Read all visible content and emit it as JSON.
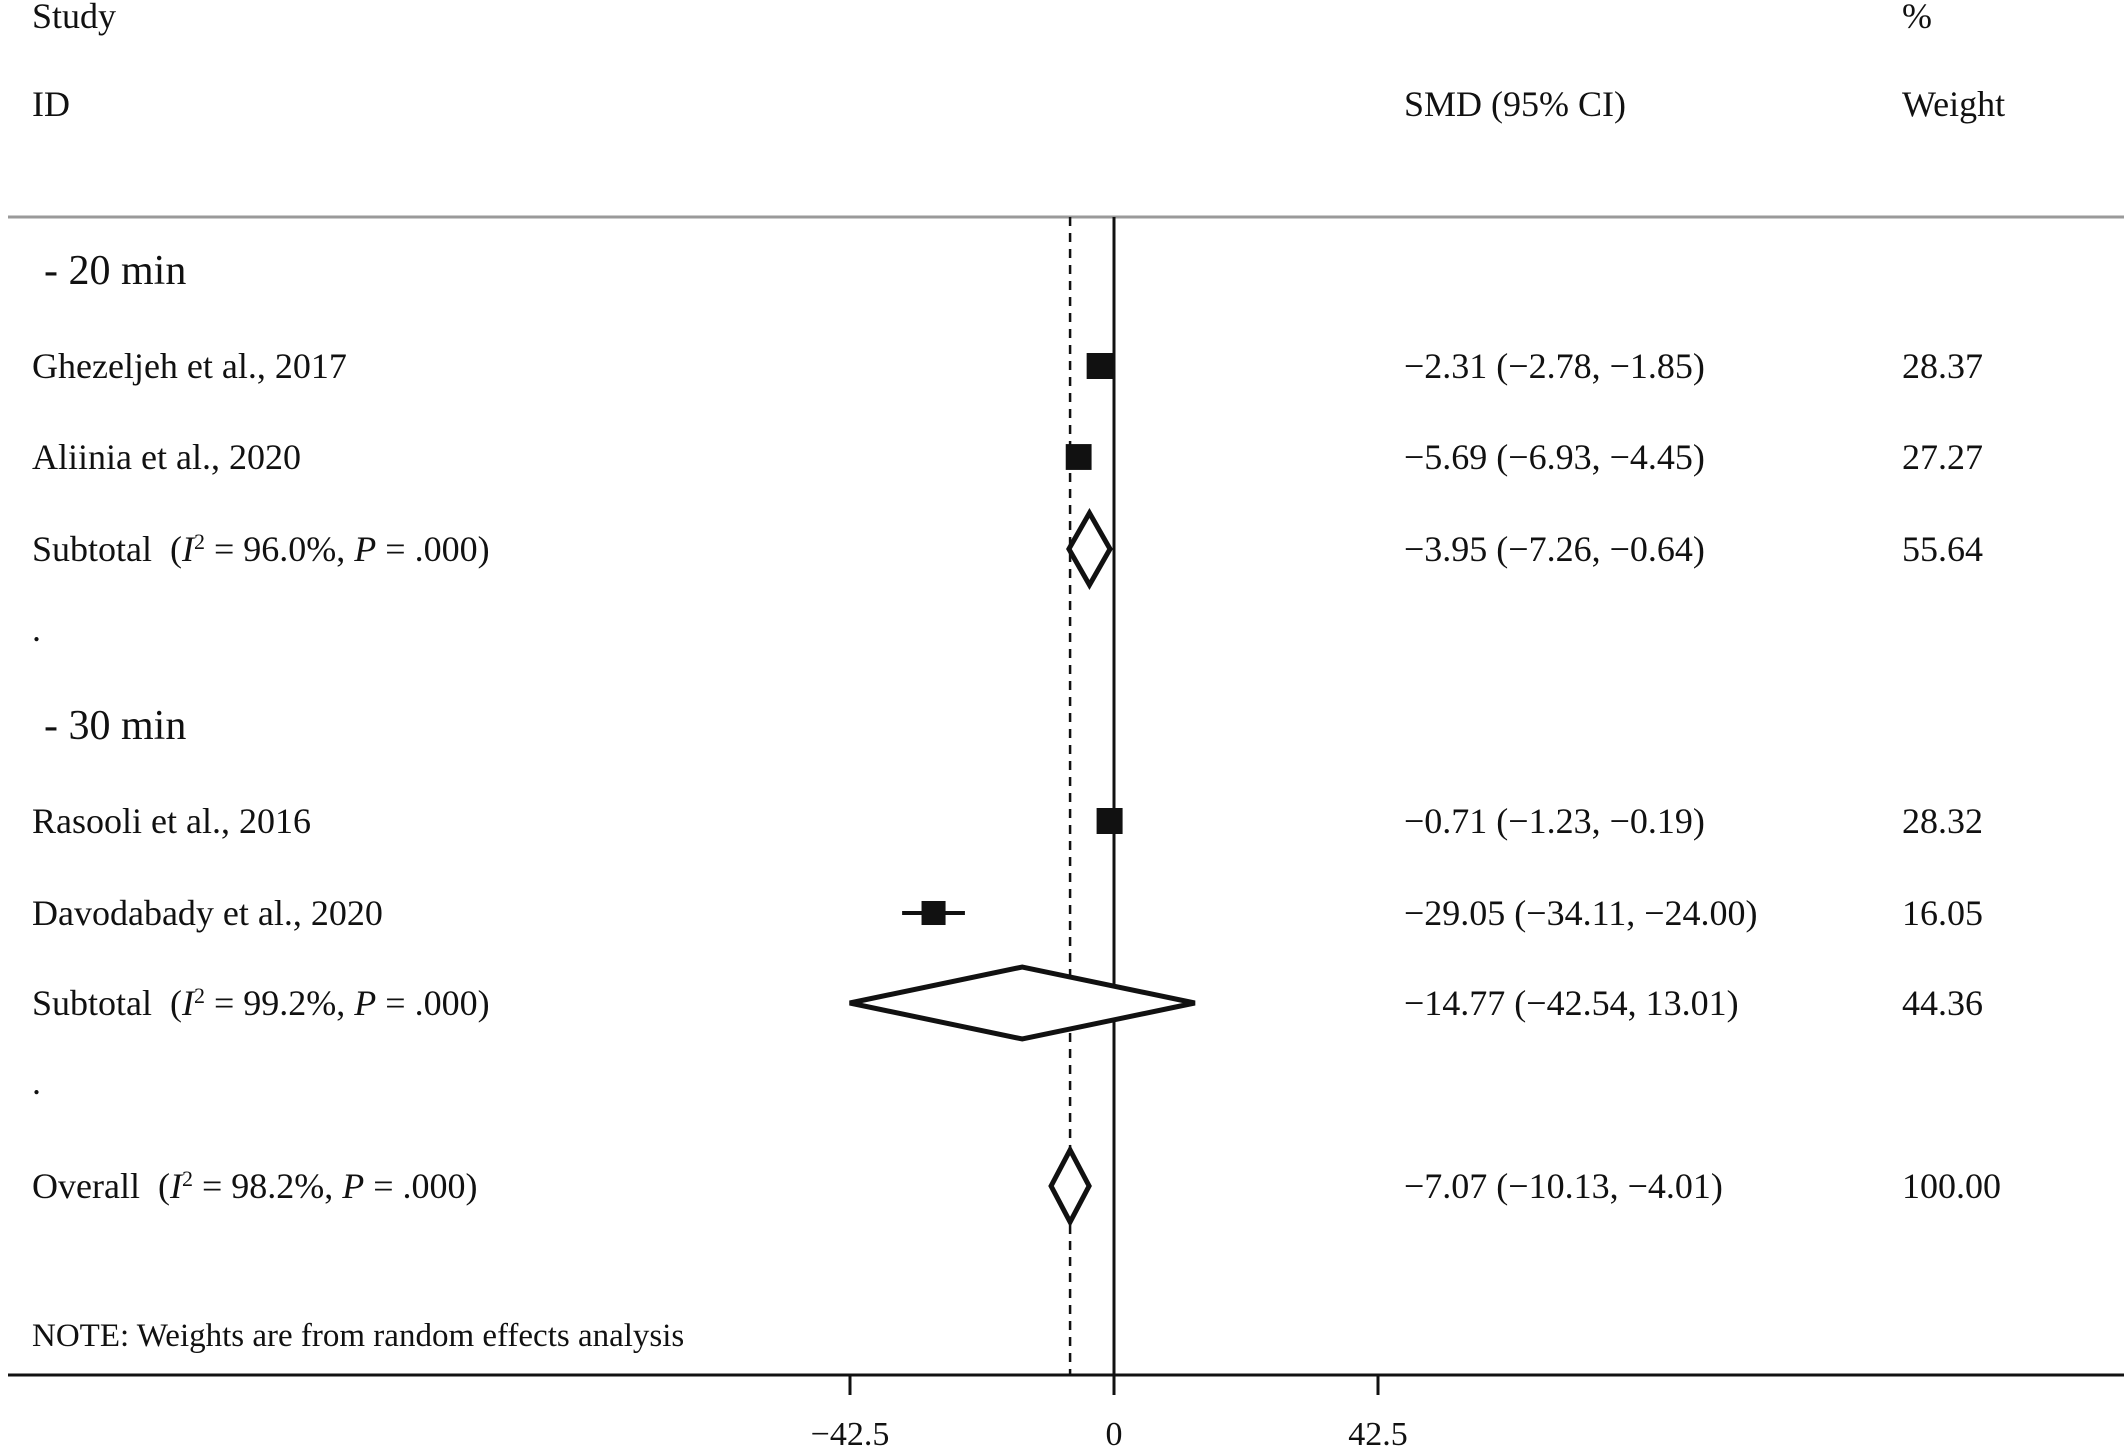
{
  "header": {
    "study": "Study",
    "id": "ID",
    "smd": "SMD (95% CI)",
    "pct": "%",
    "weight": "Weight"
  },
  "chart_data": {
    "type": "forest",
    "xlim": [
      -42.5,
      42.5
    ],
    "ticks": [
      {
        "value": -42.5,
        "label": "−42.5"
      },
      {
        "value": 0,
        "label": "0"
      },
      {
        "value": 42.5,
        "label": "42.5"
      }
    ],
    "overall_line": -7.07,
    "null_line": 0,
    "rows": [
      {
        "kind": "group",
        "label": "- 20 min"
      },
      {
        "kind": "study",
        "label": "Ghezeljeh et al., 2017",
        "est": -2.31,
        "lo": -2.78,
        "hi": -1.85,
        "ci_text": "−2.31 (−2.78, −1.85)",
        "weight": 28.37,
        "weight_text": "28.37"
      },
      {
        "kind": "study",
        "label": "Aliinia et al., 2020",
        "est": -5.69,
        "lo": -6.93,
        "hi": -4.45,
        "ci_text": "−5.69 (−6.93, −4.45)",
        "weight": 27.27,
        "weight_text": "27.27"
      },
      {
        "kind": "subtotal",
        "prefix": "Subtotal",
        "i2_text": "96.0%",
        "p_text": ".000",
        "est": -3.95,
        "lo": -7.26,
        "hi": -0.64,
        "ci_text": "−3.95 (−7.26, −0.64)",
        "weight_text": "55.64"
      },
      {
        "kind": "spacer",
        "label": "."
      },
      {
        "kind": "group",
        "label": "- 30 min"
      },
      {
        "kind": "study",
        "label": "Rasooli et al., 2016",
        "est": -0.71,
        "lo": -1.23,
        "hi": -0.19,
        "ci_text": "−0.71 (−1.23, −0.19)",
        "weight": 28.32,
        "weight_text": "28.32"
      },
      {
        "kind": "study",
        "label": "Davodabady et al., 2020",
        "est": -29.05,
        "lo": -34.11,
        "hi": -24.0,
        "ci_text": "−29.05 (−34.11, −24.00)",
        "weight": 16.05,
        "weight_text": "16.05"
      },
      {
        "kind": "subtotal",
        "prefix": "Subtotal",
        "i2_text": "99.2%",
        "p_text": ".000",
        "est": -14.77,
        "lo": -42.54,
        "hi": 13.01,
        "ci_text": "−14.77 (−42.54, 13.01)",
        "weight_text": "44.36"
      },
      {
        "kind": "spacer",
        "label": "."
      },
      {
        "kind": "subtotal",
        "prefix": "Overall",
        "i2_text": "98.2%",
        "p_text": ".000",
        "est": -7.07,
        "lo": -10.13,
        "hi": -4.01,
        "ci_text": "−7.07 (−10.13, −4.01)",
        "weight_text": "100.00"
      }
    ],
    "note": "NOTE: Weights are from random effects analysis"
  }
}
